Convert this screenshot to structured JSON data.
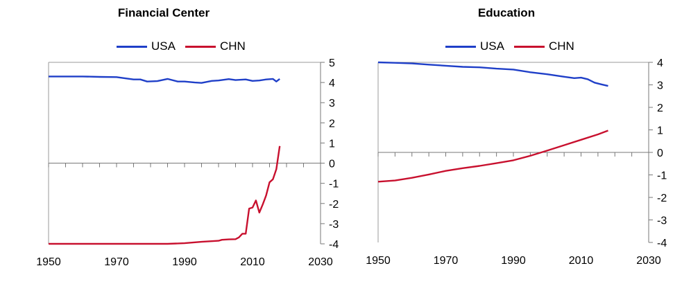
{
  "chart_data": [
    {
      "type": "line",
      "title": "Financial Center",
      "xlim": [
        1950,
        2030
      ],
      "ylim": [
        -4,
        5
      ],
      "x_ticks": [
        1950,
        1970,
        1990,
        2010,
        2030
      ],
      "y_ticks": [
        5,
        4,
        3,
        2,
        1,
        0,
        -1,
        -2,
        -3,
        -4
      ],
      "y_axis_side": "right",
      "legend": "top",
      "grid": false,
      "series": [
        {
          "name": "USA",
          "color": "#1f3fc8",
          "x": [
            1950,
            1955,
            1960,
            1965,
            1970,
            1972,
            1975,
            1977,
            1979,
            1982,
            1985,
            1988,
            1990,
            1993,
            1995,
            1998,
            2000,
            2003,
            2005,
            2008,
            2010,
            2012,
            2014,
            2016,
            2017,
            2018
          ],
          "y": [
            4.3,
            4.3,
            4.3,
            4.28,
            4.27,
            4.22,
            4.15,
            4.15,
            4.05,
            4.07,
            4.18,
            4.05,
            4.05,
            4.0,
            3.98,
            4.08,
            4.1,
            4.17,
            4.12,
            4.15,
            4.08,
            4.1,
            4.15,
            4.18,
            4.05,
            4.18
          ]
        },
        {
          "name": "CHN",
          "color": "#c8102e",
          "x": [
            1950,
            1955,
            1960,
            1965,
            1970,
            1975,
            1980,
            1985,
            1990,
            1995,
            2000,
            2001,
            2003,
            2005,
            2006,
            2007,
            2008,
            2009,
            2010,
            2011,
            2012,
            2013,
            2014,
            2015,
            2016,
            2017,
            2018
          ],
          "y": [
            -4.0,
            -4.0,
            -4.0,
            -4.0,
            -4.0,
            -4.0,
            -4.0,
            -4.0,
            -3.97,
            -3.9,
            -3.85,
            -3.8,
            -3.78,
            -3.77,
            -3.68,
            -3.5,
            -3.5,
            -2.25,
            -2.2,
            -1.85,
            -2.45,
            -2.05,
            -1.6,
            -0.95,
            -0.8,
            -0.3,
            0.85
          ]
        }
      ]
    },
    {
      "type": "line",
      "title": "Education",
      "xlim": [
        1950,
        2030
      ],
      "ylim": [
        -4,
        4
      ],
      "x_ticks": [
        1950,
        1970,
        1990,
        2010,
        2030
      ],
      "y_ticks": [
        4,
        3,
        2,
        1,
        0,
        -1,
        -2,
        -3,
        -4
      ],
      "y_axis_side": "right",
      "legend": "top",
      "grid": false,
      "series": [
        {
          "name": "USA",
          "color": "#1f3fc8",
          "x": [
            1950,
            1955,
            1960,
            1965,
            1970,
            1975,
            1980,
            1985,
            1990,
            1995,
            2000,
            2005,
            2008,
            2010,
            2012,
            2014,
            2016,
            2018
          ],
          "y": [
            4.0,
            3.98,
            3.95,
            3.9,
            3.85,
            3.8,
            3.78,
            3.72,
            3.68,
            3.56,
            3.47,
            3.36,
            3.3,
            3.32,
            3.25,
            3.1,
            3.02,
            2.95
          ]
        },
        {
          "name": "CHN",
          "color": "#c8102e",
          "x": [
            1950,
            1955,
            1960,
            1965,
            1970,
            1975,
            1980,
            1985,
            1990,
            1995,
            2000,
            2005,
            2010,
            2015,
            2018
          ],
          "y": [
            -1.3,
            -1.25,
            -1.13,
            -0.98,
            -0.82,
            -0.7,
            -0.6,
            -0.48,
            -0.35,
            -0.15,
            0.08,
            0.32,
            0.56,
            0.8,
            0.97
          ]
        }
      ]
    }
  ]
}
